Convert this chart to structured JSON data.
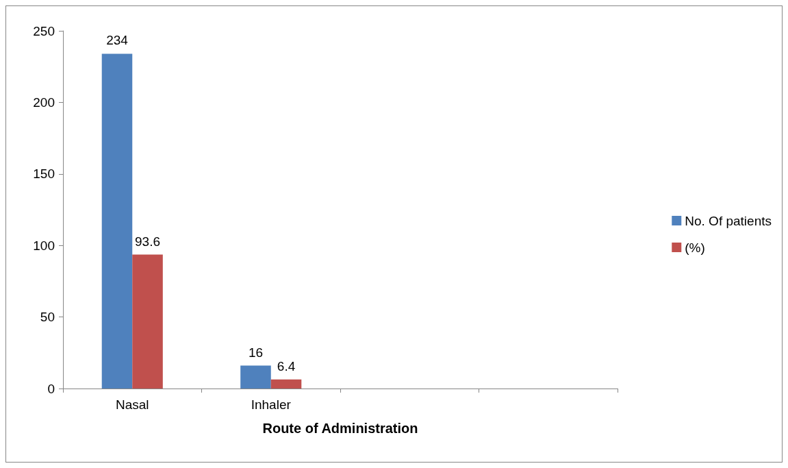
{
  "chart_data": {
    "type": "bar",
    "xlabel": "Route of Administration",
    "categories": [
      "Nasal",
      "Inhaler",
      null,
      null
    ],
    "series": [
      {
        "name": "No. Of patients",
        "color": "#4f81bd",
        "values": [
          234,
          16,
          null,
          null
        ]
      },
      {
        "name": "(%)",
        "color": "#c0504d",
        "values": [
          93.6,
          6.4,
          null,
          null
        ]
      }
    ],
    "ylim": [
      0,
      250
    ],
    "yticks": [
      0,
      50,
      100,
      150,
      200,
      250
    ],
    "grid": false,
    "legend": "right",
    "data_labels": true
  }
}
